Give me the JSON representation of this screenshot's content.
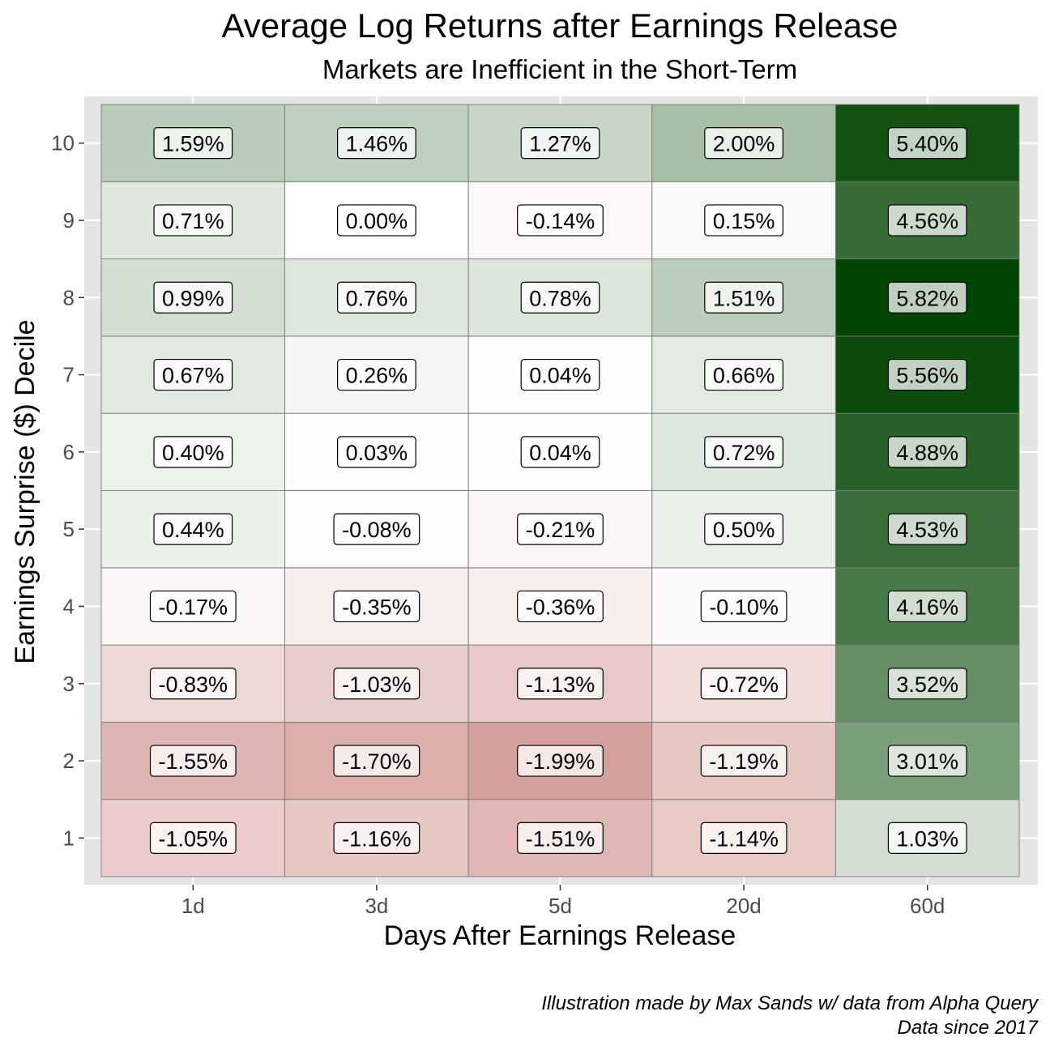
{
  "chart_data": {
    "type": "heatmap",
    "title": "Average Log Returns after Earnings Release",
    "subtitle": "Markets are Inefficient in the Short-Term",
    "xlabel": "Days After Earnings Release",
    "ylabel": "Earnings Surprise ($) Decile",
    "x_categories": [
      "1d",
      "3d",
      "5d",
      "20d",
      "60d"
    ],
    "y_categories": [
      "1",
      "2",
      "3",
      "4",
      "5",
      "6",
      "7",
      "8",
      "9",
      "10"
    ],
    "values": [
      [
        -1.05,
        -1.16,
        -1.51,
        -1.14,
        1.03
      ],
      [
        -1.55,
        -1.7,
        -1.99,
        -1.19,
        3.01
      ],
      [
        -0.83,
        -1.03,
        -1.13,
        -0.72,
        3.52
      ],
      [
        -0.17,
        -0.35,
        -0.36,
        -0.1,
        4.16
      ],
      [
        0.44,
        -0.08,
        -0.21,
        0.5,
        4.53
      ],
      [
        0.4,
        0.03,
        0.04,
        0.72,
        4.88
      ],
      [
        0.67,
        0.26,
        0.04,
        0.66,
        5.56
      ],
      [
        0.99,
        0.76,
        0.78,
        1.51,
        5.82
      ],
      [
        0.71,
        0.0,
        -0.14,
        0.15,
        4.56
      ],
      [
        1.59,
        1.46,
        1.27,
        2.0,
        5.4
      ]
    ],
    "labels": [
      [
        "-1.05%",
        "-1.16%",
        "-1.51%",
        "-1.14%",
        "1.03%"
      ],
      [
        "-1.55%",
        "-1.70%",
        "-1.99%",
        "-1.19%",
        "3.01%"
      ],
      [
        "-0.83%",
        "-1.03%",
        "-1.13%",
        "-0.72%",
        "3.52%"
      ],
      [
        "-0.17%",
        "-0.35%",
        "-0.36%",
        "-0.10%",
        "4.16%"
      ],
      [
        "0.44%",
        "-0.08%",
        "-0.21%",
        "0.50%",
        "4.53%"
      ],
      [
        "0.40%",
        "0.03%",
        "0.04%",
        "0.72%",
        "4.88%"
      ],
      [
        "0.67%",
        "0.26%",
        "0.04%",
        "0.66%",
        "5.56%"
      ],
      [
        "0.99%",
        "0.76%",
        "0.78%",
        "1.51%",
        "5.82%"
      ],
      [
        "0.71%",
        "0.00%",
        "-0.14%",
        "0.15%",
        "4.56%"
      ],
      [
        "1.59%",
        "1.46%",
        "1.27%",
        "2.00%",
        "5.40%"
      ]
    ],
    "color_scale": {
      "low": "#c87f78",
      "mid": "#ffffff",
      "high": "#004400",
      "mid_value": 0,
      "low_value": -2.7,
      "high_value": 5.82
    },
    "legend": "none",
    "grid": true,
    "panel_background": "#e5e5e5"
  },
  "caption": {
    "line1": "Illustration made by Max Sands w/ data from Alpha Query",
    "line2": "Data since 2017"
  }
}
